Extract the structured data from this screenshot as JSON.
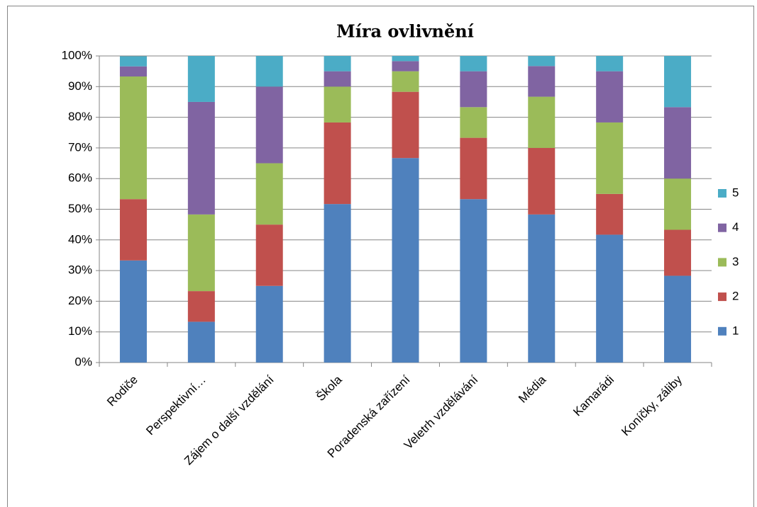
{
  "chart_data": {
    "type": "stacked_bar_percent",
    "title": "Míra ovlivnění",
    "categories": [
      "Rodiče",
      "Perspektivní…",
      "Zájem o další vzdělání",
      "Škola",
      "Poradenská zařízení",
      "Veletrh vzdělávání",
      "Média",
      "Kamarádi",
      "Koníčky, záliby"
    ],
    "series": [
      {
        "name": "1",
        "color": "#4f81bd",
        "values": [
          33.3,
          13.3,
          25,
          51.7,
          66.7,
          53.3,
          48.3,
          41.7,
          28.3
        ]
      },
      {
        "name": "2",
        "color": "#c0504d",
        "values": [
          20,
          10,
          20,
          26.6,
          21.6,
          20,
          21.7,
          13.3,
          15
        ]
      },
      {
        "name": "3",
        "color": "#9bbb59",
        "values": [
          40,
          25,
          20,
          11.7,
          6.7,
          10,
          16.7,
          23.3,
          16.7
        ]
      },
      {
        "name": "4",
        "color": "#8064a2",
        "values": [
          3.3,
          36.7,
          25,
          5,
          3.3,
          11.7,
          10,
          16.7,
          23.3
        ]
      },
      {
        "name": "5",
        "color": "#4bacc6",
        "values": [
          3.3,
          15,
          10,
          5,
          1.7,
          5,
          3.3,
          5,
          16.7
        ]
      }
    ],
    "ylim": [
      0,
      100
    ],
    "yticks": [
      {
        "value": 0,
        "label": "0%"
      },
      {
        "value": 10,
        "label": "10%"
      },
      {
        "value": 20,
        "label": "20%"
      },
      {
        "value": 30,
        "label": "30%"
      },
      {
        "value": 40,
        "label": "40%"
      },
      {
        "value": 50,
        "label": "50%"
      },
      {
        "value": 60,
        "label": "60%"
      },
      {
        "value": 70,
        "label": "70%"
      },
      {
        "value": 80,
        "label": "80%"
      },
      {
        "value": 90,
        "label": "90%"
      },
      {
        "value": 100,
        "label": "100%"
      }
    ],
    "grid": true,
    "legend": "right"
  }
}
